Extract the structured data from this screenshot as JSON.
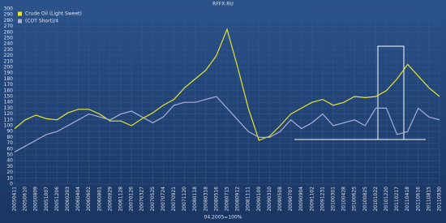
{
  "chart_data": {
    "type": "line",
    "title": "RFFX.RU",
    "x_label": "04.2005=100%",
    "categories": [
      "20050411",
      "20050610",
      "20050809",
      "20051007",
      "20051206",
      "20060203",
      "20060404",
      "20060602",
      "20060801",
      "20060929",
      "20061128",
      "20070126",
      "20070327",
      "20070525",
      "20070724",
      "20070921",
      "20071120",
      "20080118",
      "20080318",
      "20080516",
      "20080715",
      "20080912",
      "20081111",
      "20090109",
      "20090310",
      "20090508",
      "20090707",
      "20090904",
      "20091102",
      "20091231",
      "20100301",
      "20100428",
      "20100625",
      "20100825",
      "20101022",
      "20101220",
      "20110217",
      "20110418",
      "20110616",
      "20110815",
      "20110930"
    ],
    "series": [
      {
        "name": "Crude Oil (Light Sweet)",
        "color": "#e6e62e",
        "values": [
          95,
          110,
          118,
          112,
          110,
          122,
          128,
          128,
          120,
          108,
          108,
          100,
          112,
          122,
          135,
          145,
          165,
          180,
          195,
          220,
          265,
          200,
          130,
          75,
          82,
          100,
          120,
          130,
          140,
          145,
          135,
          140,
          150,
          148,
          150,
          160,
          180,
          205,
          185,
          165,
          150
        ]
      },
      {
        "name": "(COT Short)/4",
        "color": "#a9b0d6",
        "values": [
          55,
          65,
          75,
          85,
          90,
          100,
          110,
          120,
          115,
          110,
          120,
          125,
          115,
          105,
          115,
          135,
          140,
          140,
          145,
          150,
          130,
          110,
          90,
          80,
          80,
          90,
          110,
          95,
          105,
          120,
          100,
          105,
          110,
          100,
          130,
          130,
          85,
          90,
          130,
          115,
          110
        ]
      }
    ],
    "ylim": [
      0,
      300
    ],
    "yticks": [
      0,
      10,
      20,
      30,
      40,
      50,
      60,
      70,
      80,
      90,
      100,
      110,
      120,
      130,
      140,
      150,
      160,
      170,
      180,
      190,
      200,
      210,
      220,
      230,
      240,
      250,
      260,
      270,
      280,
      290,
      300
    ],
    "grid": true,
    "legend": "top-left"
  }
}
